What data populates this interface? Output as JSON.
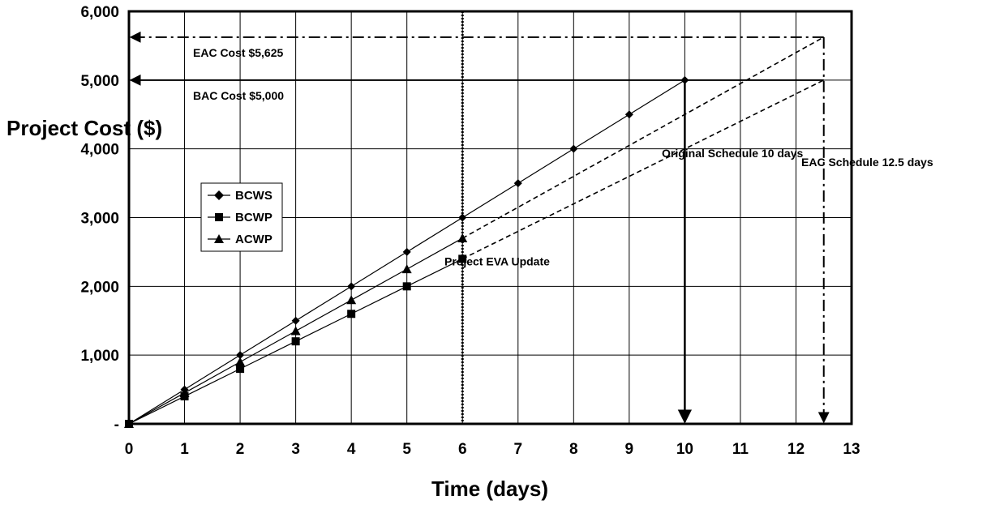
{
  "chart_data": {
    "type": "line",
    "xlabel": "Time (days)",
    "ylabel": "Project Cost ($)",
    "xlim": [
      0,
      13
    ],
    "ylim": [
      0,
      6000
    ],
    "xticks": [
      0,
      1,
      2,
      3,
      4,
      5,
      6,
      7,
      8,
      9,
      10,
      11,
      12,
      13
    ],
    "yticks": [
      0,
      1000,
      2000,
      3000,
      4000,
      5000,
      6000
    ],
    "ytick_labels": [
      "-",
      "1,000",
      "2,000",
      "3,000",
      "4,000",
      "5,000",
      "6,000"
    ],
    "grid": true,
    "legend_position": "left",
    "series": [
      {
        "name": "BCWS",
        "marker": "diamond",
        "x": [
          0,
          1,
          2,
          3,
          4,
          5,
          6,
          7,
          8,
          9,
          10
        ],
        "y": [
          0,
          500,
          1000,
          1500,
          2000,
          2500,
          3000,
          3500,
          4000,
          4500,
          5000
        ]
      },
      {
        "name": "BCWP",
        "marker": "square",
        "x": [
          0,
          1,
          2,
          3,
          4,
          5,
          6
        ],
        "y": [
          0,
          400,
          800,
          1200,
          1600,
          2000,
          2400
        ]
      },
      {
        "name": "ACWP",
        "marker": "triangle",
        "x": [
          0,
          1,
          2,
          3,
          4,
          5,
          6
        ],
        "y": [
          0,
          450,
          900,
          1350,
          1800,
          2250,
          2700
        ]
      }
    ],
    "projections": [
      {
        "from": [
          6,
          2700
        ],
        "to": [
          12.5,
          5625
        ],
        "style": "dashed"
      },
      {
        "from": [
          6,
          2400
        ],
        "to": [
          12.5,
          5000
        ],
        "style": "dashed"
      }
    ],
    "reference_lines": [
      {
        "kind": "horizontal",
        "y": 5625,
        "style": "dashdot",
        "label": "EAC Cost $5,625"
      },
      {
        "kind": "horizontal",
        "y": 5000,
        "style": "solid",
        "label": "BAC Cost $5,000"
      },
      {
        "kind": "vertical",
        "x": 6,
        "style": "dotted",
        "label": "Project EVA Update"
      },
      {
        "kind": "vertical",
        "x": 10,
        "style": "solid",
        "label": "Original Schedule 10 days"
      },
      {
        "kind": "vertical",
        "x": 12.5,
        "style": "dashdot",
        "label": "EAC Schedule 12.5 days"
      }
    ]
  }
}
